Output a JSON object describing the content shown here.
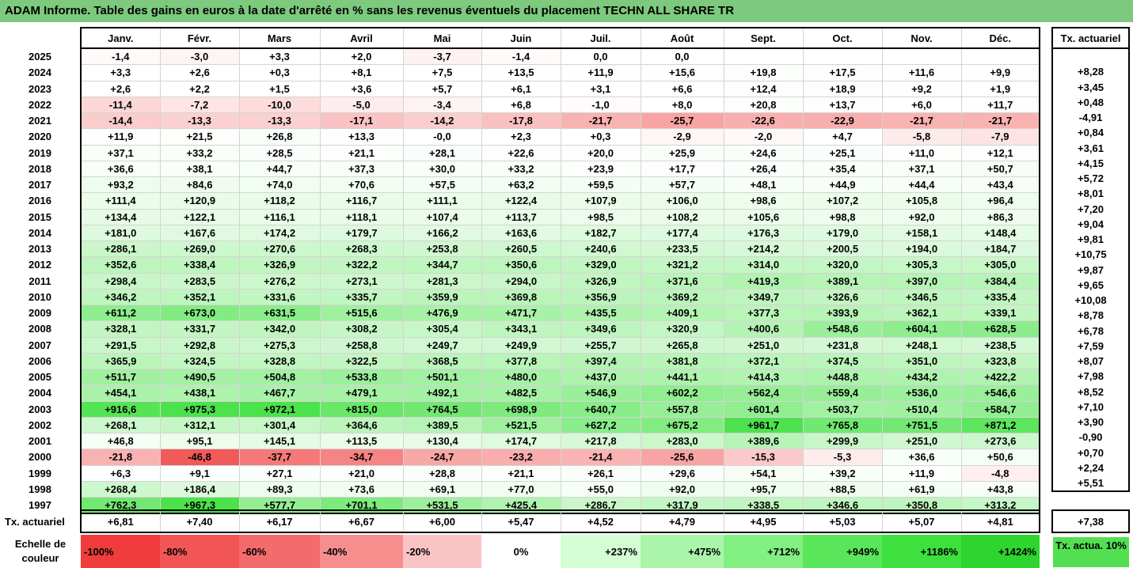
{
  "title": "ADAM Informe. Table des gains en euros à la date d'arrêté en % sans les revenus éventuels du placement TECHN ALL SHARE TR",
  "months": [
    "Janv.",
    "Févr.",
    "Mars",
    "Avril",
    "Mai",
    "Juin",
    "Juil.",
    "Août",
    "Sept.",
    "Oct.",
    "Nov.",
    "Déc."
  ],
  "tx_header": "Tx. actuariel",
  "rows": [
    {
      "year": "2025",
      "vals": [
        "-1,4",
        "-3,0",
        "+3,3",
        "+2,0",
        "-3,7",
        "-1,4",
        "0,0",
        "0,0",
        "",
        "",
        "",
        ""
      ],
      "tx": ""
    },
    {
      "year": "2024",
      "vals": [
        "+3,3",
        "+2,6",
        "+0,3",
        "+8,1",
        "+7,5",
        "+13,5",
        "+11,9",
        "+15,6",
        "+19,8",
        "+17,5",
        "+11,6",
        "+9,9"
      ],
      "tx": "+8,28"
    },
    {
      "year": "2023",
      "vals": [
        "+2,6",
        "+2,2",
        "+1,5",
        "+3,6",
        "+5,7",
        "+6,1",
        "+3,1",
        "+6,6",
        "+12,4",
        "+18,9",
        "+9,2",
        "+1,9"
      ],
      "tx": "+3,45"
    },
    {
      "year": "2022",
      "vals": [
        "-11,4",
        "-7,2",
        "-10,0",
        "-5,0",
        "-3,4",
        "+6,8",
        "-1,0",
        "+8,0",
        "+20,8",
        "+13,7",
        "+6,0",
        "+11,7"
      ],
      "tx": "+0,48"
    },
    {
      "year": "2021",
      "vals": [
        "-14,4",
        "-13,3",
        "-13,3",
        "-17,1",
        "-14,2",
        "-17,8",
        "-21,7",
        "-25,7",
        "-22,6",
        "-22,9",
        "-21,7",
        "-21,7"
      ],
      "tx": "-4,91"
    },
    {
      "year": "2020",
      "vals": [
        "+11,9",
        "+21,5",
        "+26,8",
        "+13,3",
        "-0,0",
        "+2,3",
        "+0,3",
        "-2,9",
        "-2,0",
        "+4,7",
        "-5,8",
        "-7,9"
      ],
      "tx": "+0,84"
    },
    {
      "year": "2019",
      "vals": [
        "+37,1",
        "+33,2",
        "+28,5",
        "+21,1",
        "+28,1",
        "+22,6",
        "+20,0",
        "+25,9",
        "+24,6",
        "+25,1",
        "+11,0",
        "+12,1"
      ],
      "tx": "+3,61"
    },
    {
      "year": "2018",
      "vals": [
        "+36,6",
        "+38,1",
        "+44,7",
        "+37,3",
        "+30,0",
        "+33,2",
        "+23,9",
        "+17,7",
        "+26,4",
        "+35,4",
        "+37,1",
        "+50,7"
      ],
      "tx": "+4,15"
    },
    {
      "year": "2017",
      "vals": [
        "+93,2",
        "+84,6",
        "+74,0",
        "+70,6",
        "+57,5",
        "+63,2",
        "+59,5",
        "+57,7",
        "+48,1",
        "+44,9",
        "+44,4",
        "+43,4"
      ],
      "tx": "+5,72"
    },
    {
      "year": "2016",
      "vals": [
        "+111,4",
        "+120,9",
        "+118,2",
        "+116,7",
        "+111,1",
        "+122,4",
        "+107,9",
        "+106,0",
        "+98,6",
        "+107,2",
        "+105,8",
        "+96,4"
      ],
      "tx": "+8,01"
    },
    {
      "year": "2015",
      "vals": [
        "+134,4",
        "+122,1",
        "+116,1",
        "+118,1",
        "+107,4",
        "+113,7",
        "+98,5",
        "+108,2",
        "+105,6",
        "+98,8",
        "+92,0",
        "+86,3"
      ],
      "tx": "+7,20"
    },
    {
      "year": "2014",
      "vals": [
        "+181,0",
        "+167,6",
        "+174,2",
        "+179,7",
        "+166,2",
        "+163,6",
        "+182,7",
        "+177,4",
        "+176,3",
        "+179,0",
        "+158,1",
        "+148,4"
      ],
      "tx": "+9,04"
    },
    {
      "year": "2013",
      "vals": [
        "+286,1",
        "+269,0",
        "+270,6",
        "+268,3",
        "+253,8",
        "+260,5",
        "+240,6",
        "+233,5",
        "+214,2",
        "+200,5",
        "+194,0",
        "+184,7"
      ],
      "tx": "+9,81"
    },
    {
      "year": "2012",
      "vals": [
        "+352,6",
        "+338,4",
        "+326,9",
        "+322,2",
        "+344,7",
        "+350,6",
        "+329,0",
        "+321,2",
        "+314,0",
        "+320,0",
        "+305,3",
        "+305,0"
      ],
      "tx": "+10,75"
    },
    {
      "year": "2011",
      "vals": [
        "+298,4",
        "+283,5",
        "+276,2",
        "+273,1",
        "+281,3",
        "+294,0",
        "+326,9",
        "+371,6",
        "+419,3",
        "+389,1",
        "+397,0",
        "+384,4"
      ],
      "tx": "+9,87"
    },
    {
      "year": "2010",
      "vals": [
        "+346,2",
        "+352,1",
        "+331,6",
        "+335,7",
        "+359,9",
        "+369,8",
        "+356,9",
        "+369,2",
        "+349,7",
        "+326,6",
        "+346,5",
        "+335,4"
      ],
      "tx": "+9,65"
    },
    {
      "year": "2009",
      "vals": [
        "+611,2",
        "+673,0",
        "+631,5",
        "+515,6",
        "+476,9",
        "+471,7",
        "+435,5",
        "+409,1",
        "+377,3",
        "+393,9",
        "+362,1",
        "+339,1"
      ],
      "tx": "+10,08"
    },
    {
      "year": "2008",
      "vals": [
        "+328,1",
        "+331,7",
        "+342,0",
        "+308,2",
        "+305,4",
        "+343,1",
        "+349,6",
        "+320,9",
        "+400,6",
        "+548,6",
        "+604,1",
        "+628,5"
      ],
      "tx": "+8,78"
    },
    {
      "year": "2007",
      "vals": [
        "+291,5",
        "+292,8",
        "+275,3",
        "+258,8",
        "+249,7",
        "+249,9",
        "+255,7",
        "+265,8",
        "+251,0",
        "+231,8",
        "+248,1",
        "+238,5"
      ],
      "tx": "+6,78"
    },
    {
      "year": "2006",
      "vals": [
        "+365,9",
        "+324,5",
        "+328,8",
        "+322,5",
        "+368,5",
        "+377,8",
        "+397,4",
        "+381,8",
        "+372,1",
        "+374,5",
        "+351,0",
        "+323,8"
      ],
      "tx": "+7,59"
    },
    {
      "year": "2005",
      "vals": [
        "+511,7",
        "+490,5",
        "+504,8",
        "+533,8",
        "+501,1",
        "+480,0",
        "+437,0",
        "+441,1",
        "+414,3",
        "+448,8",
        "+434,2",
        "+422,2"
      ],
      "tx": "+8,07"
    },
    {
      "year": "2004",
      "vals": [
        "+454,1",
        "+438,1",
        "+467,7",
        "+479,1",
        "+492,1",
        "+482,5",
        "+546,9",
        "+602,2",
        "+562,4",
        "+559,4",
        "+536,0",
        "+546,6"
      ],
      "tx": "+7,98"
    },
    {
      "year": "2003",
      "vals": [
        "+916,6",
        "+975,3",
        "+972,1",
        "+815,0",
        "+764,5",
        "+698,9",
        "+640,7",
        "+557,8",
        "+601,4",
        "+503,7",
        "+510,4",
        "+584,7"
      ],
      "tx": "+8,52"
    },
    {
      "year": "2002",
      "vals": [
        "+268,1",
        "+312,1",
        "+301,4",
        "+364,6",
        "+389,5",
        "+521,5",
        "+627,2",
        "+675,2",
        "+961,7",
        "+765,8",
        "+751,5",
        "+871,2"
      ],
      "tx": "+7,10"
    },
    {
      "year": "2001",
      "vals": [
        "+46,8",
        "+95,1",
        "+145,1",
        "+113,5",
        "+130,4",
        "+174,7",
        "+217,8",
        "+283,0",
        "+389,6",
        "+299,9",
        "+251,0",
        "+273,6"
      ],
      "tx": "+3,90"
    },
    {
      "year": "2000",
      "vals": [
        "-21,8",
        "-46,8",
        "-37,7",
        "-34,7",
        "-24,7",
        "-23,2",
        "-21,4",
        "-25,6",
        "-15,3",
        "-5,3",
        "+36,6",
        "+50,6"
      ],
      "tx": "-0,90"
    },
    {
      "year": "1999",
      "vals": [
        "+6,3",
        "+9,1",
        "+27,1",
        "+21,0",
        "+28,8",
        "+21,1",
        "+26,1",
        "+29,6",
        "+54,1",
        "+39,2",
        "+11,9",
        "-4,8"
      ],
      "tx": "+0,70"
    },
    {
      "year": "1998",
      "vals": [
        "+268,4",
        "+186,4",
        "+89,3",
        "+73,6",
        "+69,1",
        "+77,0",
        "+55,0",
        "+92,0",
        "+95,7",
        "+88,5",
        "+61,9",
        "+43,8"
      ],
      "tx": "+2,24"
    },
    {
      "year": "1997",
      "vals": [
        "+762,3",
        "+967,3",
        "+577,7",
        "+701,1",
        "+531,5",
        "+425,4",
        "+286,7",
        "+317,9",
        "+338,5",
        "+346,6",
        "+350,8",
        "+313,2"
      ],
      "tx": "+5,51"
    }
  ],
  "footer": {
    "label": "Tx. actuariel",
    "vals": [
      "+6,81",
      "+7,40",
      "+6,17",
      "+6,67",
      "+6,00",
      "+5,47",
      "+4,52",
      "+4,79",
      "+4,95",
      "+5,03",
      "+5,07",
      "+4,81"
    ],
    "total": "+7,38"
  },
  "scale": {
    "label": "Echelle de couleur",
    "items": [
      {
        "text": "-100%",
        "color": "#f03c3c"
      },
      {
        "text": "-80%",
        "color": "#f25555"
      },
      {
        "text": "-60%",
        "color": "#f46b6b"
      },
      {
        "text": "-40%",
        "color": "#f78e8e"
      },
      {
        "text": "-20%",
        "color": "#fbc4c4"
      },
      {
        "text": "0%",
        "color": "#ffffff"
      },
      {
        "text": "+237%",
        "color": "#d4fdd4"
      },
      {
        "text": "+475%",
        "color": "#aaf5aa"
      },
      {
        "text": "+712%",
        "color": "#82ef82"
      },
      {
        "text": "+949%",
        "color": "#5ae65a"
      },
      {
        "text": "+1186%",
        "color": "#3ee03e"
      },
      {
        "text": "+1424%",
        "color": "#2ed52e"
      }
    ],
    "tx10": "Tx. actua. 10%",
    "tx10_color": "#52e052"
  },
  "colors": {
    "title_bg": "#7dc97d"
  }
}
